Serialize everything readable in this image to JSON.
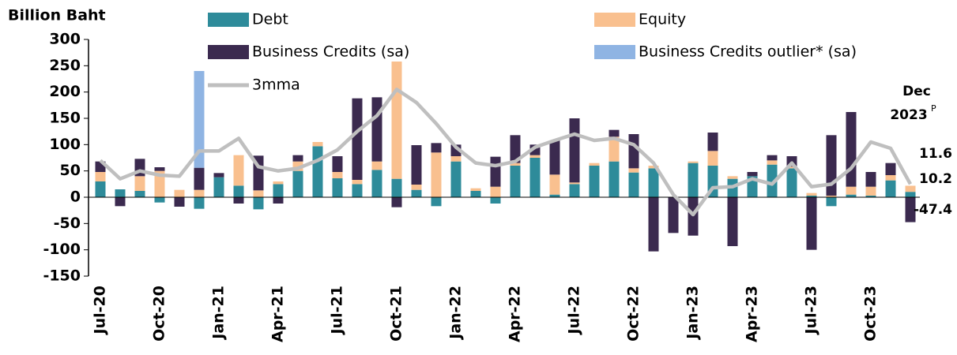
{
  "chart_data": {
    "type": "bar",
    "stacked": true,
    "y_label": "Billion Baht",
    "categories": [
      "Jul-20",
      null,
      null,
      "Oct-20",
      null,
      null,
      "Jan-21",
      null,
      null,
      "Apr-21",
      null,
      null,
      "Jul-21",
      null,
      null,
      "Oct-21",
      null,
      null,
      "Jan-22",
      null,
      null,
      "Apr-22",
      null,
      null,
      "Jul-22",
      null,
      null,
      "Oct-22",
      null,
      null,
      "Jan-23",
      null,
      null,
      "Apr-23",
      null,
      null,
      "Jul-23",
      null,
      null,
      "Oct-23",
      null,
      null
    ],
    "series": [
      {
        "name": "Debt",
        "color": "#2e8b9a",
        "values": [
          30,
          15,
          12,
          -10,
          0,
          -22,
          38,
          22,
          -23,
          25,
          50,
          97,
          36,
          25,
          52,
          35,
          14,
          -17,
          68,
          12,
          -12,
          60,
          75,
          5,
          25,
          60,
          68,
          47,
          55,
          0,
          65,
          60,
          35,
          40,
          62,
          55,
          3,
          -17,
          5,
          3,
          32,
          10.2
        ]
      },
      {
        "name": "Equity",
        "color": "#f9c08f",
        "values": [
          18,
          0,
          28,
          50,
          14,
          14,
          0,
          58,
          13,
          5,
          18,
          8,
          12,
          8,
          16,
          223,
          10,
          85,
          10,
          5,
          20,
          5,
          5,
          38,
          3,
          5,
          47,
          8,
          5,
          0,
          3,
          28,
          5,
          0,
          8,
          3,
          5,
          3,
          15,
          17,
          10,
          11.6
        ]
      },
      {
        "name": "Business Credits (sa)",
        "color": "#3b2a4f",
        "values": [
          20,
          -17,
          33,
          7,
          -18,
          42,
          8,
          -12,
          66,
          -12,
          12,
          0,
          30,
          155,
          122,
          -19,
          75,
          18,
          22,
          0,
          57,
          53,
          20,
          65,
          122,
          0,
          13,
          65,
          -103,
          -68,
          -73,
          35,
          -93,
          8,
          10,
          20,
          -100,
          115,
          142,
          28,
          23,
          -47.4
        ]
      },
      {
        "name": "Business Credits outlier* (sa)",
        "color": "#8fb4e3",
        "values": [
          null,
          null,
          null,
          null,
          null,
          184,
          null,
          null,
          null,
          null,
          null,
          null,
          null,
          null,
          null,
          null,
          null,
          null,
          null,
          null,
          null,
          null,
          null,
          null,
          null,
          null,
          null,
          null,
          null,
          null,
          null,
          null,
          null,
          null,
          null,
          null,
          null,
          null,
          null,
          null,
          null,
          null
        ]
      },
      {
        "name": "3mma",
        "color": "#bfbfbf",
        "type": "line",
        "values": [
          70,
          35,
          50,
          42,
          40,
          88,
          88,
          112,
          58,
          50,
          55,
          70,
          90,
          125,
          155,
          205,
          180,
          140,
          95,
          65,
          60,
          68,
          95,
          108,
          120,
          108,
          112,
          100,
          65,
          5,
          -33,
          18,
          20,
          35,
          25,
          65,
          20,
          25,
          55,
          105,
          93,
          25
        ]
      }
    ],
    "ylim": [
      -150,
      300
    ],
    "yticks": [
      -150,
      -100,
      -50,
      0,
      50,
      100,
      150,
      200,
      250,
      300
    ],
    "annotation": {
      "month": "Dec",
      "year": "2023",
      "mark": "P"
    }
  }
}
